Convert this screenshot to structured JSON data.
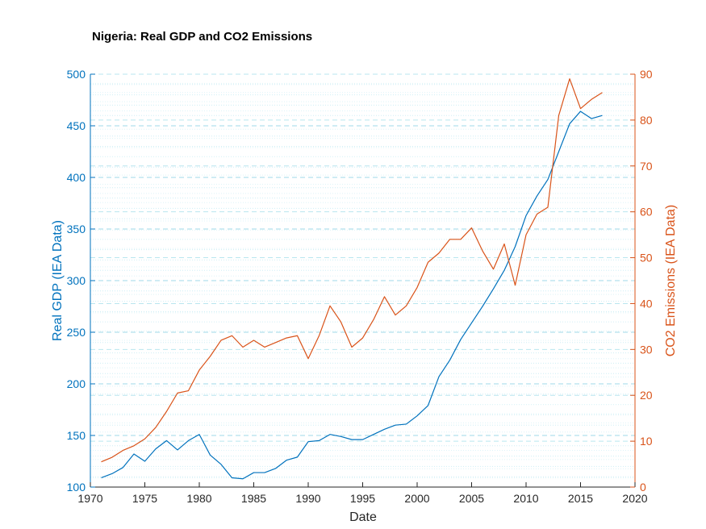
{
  "chart_data": {
    "type": "line",
    "title": "Nigeria: Real GDP and CO2 Emissions",
    "xlabel": "Date",
    "ylabel_left": "Real GDP (IEA Data)",
    "ylabel_right": "CO2 Emissions (IEA Data)",
    "xlim": [
      1970,
      2020
    ],
    "ylim_left": [
      100,
      500
    ],
    "ylim_right": [
      0,
      90
    ],
    "x_ticks": [
      "1970",
      "1975",
      "1980",
      "1985",
      "1990",
      "1995",
      "2000",
      "2005",
      "2010",
      "2015",
      "2020"
    ],
    "y_left_ticks": [
      "100",
      "150",
      "200",
      "250",
      "300",
      "350",
      "400",
      "450",
      "500"
    ],
    "y_right_ticks": [
      "0",
      "10",
      "20",
      "30",
      "40",
      "50",
      "60",
      "70",
      "80",
      "90"
    ],
    "grid": true,
    "x": [
      1971,
      1972,
      1973,
      1974,
      1975,
      1976,
      1977,
      1978,
      1979,
      1980,
      1981,
      1982,
      1983,
      1984,
      1985,
      1986,
      1987,
      1988,
      1989,
      1990,
      1991,
      1992,
      1993,
      1994,
      1995,
      1996,
      1997,
      1998,
      1999,
      2000,
      2001,
      2002,
      2003,
      2004,
      2005,
      2006,
      2007,
      2008,
      2009,
      2010,
      2011,
      2012,
      2013,
      2014,
      2015,
      2016,
      2017
    ],
    "series": [
      {
        "axis": "left",
        "color": "#0072BD",
        "values": [
          109,
          113,
          119,
          132,
          125,
          137,
          145,
          136,
          145,
          151,
          131,
          122,
          109,
          108,
          114,
          114,
          118,
          126,
          129,
          144,
          145,
          151,
          149,
          146,
          146,
          151,
          156,
          160,
          161,
          169,
          179,
          207,
          223,
          243,
          259,
          275,
          292,
          310,
          333,
          363,
          382,
          398,
          425,
          452,
          464,
          457,
          460
        ]
      },
      {
        "axis": "right",
        "color": "#D95319",
        "values": [
          5.5,
          6.5,
          8.0,
          9.0,
          10.5,
          13.0,
          16.5,
          20.5,
          21.0,
          25.5,
          28.5,
          32.0,
          33.0,
          30.5,
          32.0,
          30.5,
          31.5,
          32.5,
          33.0,
          28.0,
          33.0,
          39.5,
          36.0,
          30.5,
          32.5,
          36.5,
          41.5,
          37.5,
          39.5,
          43.5,
          49.0,
          51.0,
          54.0,
          54.0,
          56.5,
          51.5,
          47.5,
          53.0,
          44.0,
          55.0,
          59.5,
          61.0,
          81.0,
          89.0,
          82.5,
          84.5,
          86.0
        ]
      }
    ]
  }
}
